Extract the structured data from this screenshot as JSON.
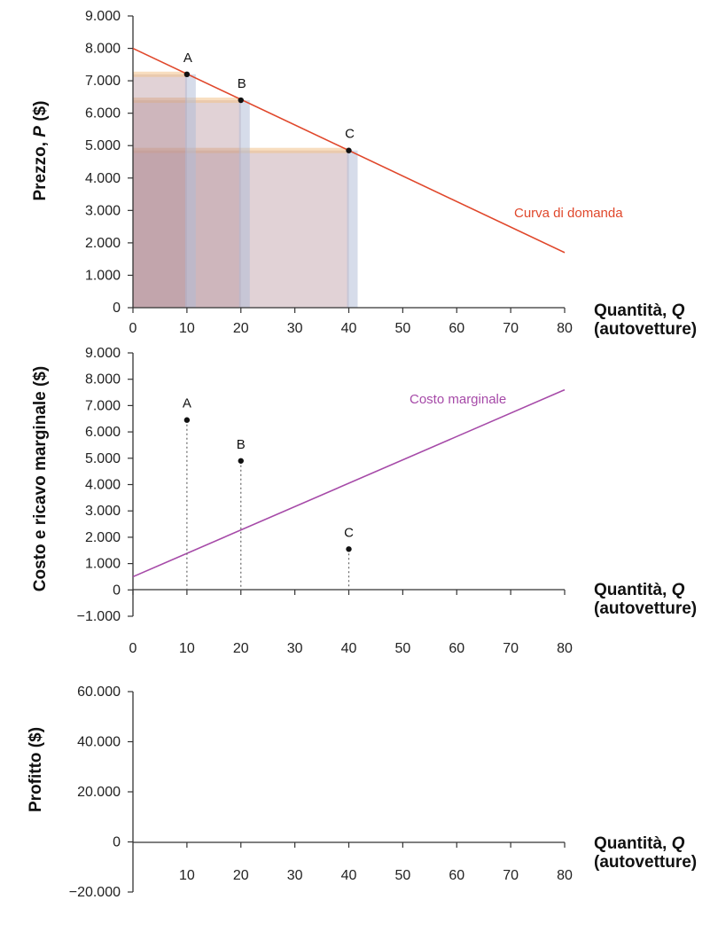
{
  "chart_data": [
    {
      "type": "line",
      "ylabel_main": "Prezzo, ",
      "ylabel_var": "P",
      "ylabel_unit": "  ($)",
      "xlabel_main": "Quantità, ",
      "xlabel_var": "Q",
      "xlabel_unit": "(autovetture)",
      "xlim": [
        0,
        80
      ],
      "ylim": [
        0,
        9000
      ],
      "x_ticks": [
        "0",
        "10",
        "20",
        "30",
        "40",
        "50",
        "60",
        "70",
        "80"
      ],
      "y_ticks": [
        "0",
        "1.000",
        "2.000",
        "3.000",
        "4.000",
        "5.000",
        "6.000",
        "7.000",
        "8.000",
        "9.000"
      ],
      "series": [
        {
          "name": "Curva di domanda",
          "color": "#e0472b",
          "x": [
            0,
            80
          ],
          "y": [
            8000,
            1700
          ]
        }
      ],
      "points": [
        {
          "label": "A",
          "x": 10,
          "y": 7200
        },
        {
          "label": "B",
          "x": 20,
          "y": 6400
        },
        {
          "label": "C",
          "x": 40,
          "y": 4850
        }
      ],
      "revenue_rectangles": [
        {
          "q": 10,
          "p": 7200
        },
        {
          "q": 20,
          "p": 6400
        },
        {
          "q": 40,
          "p": 4850
        }
      ],
      "colors": {
        "rect_fill": "#b08a93",
        "rect_edge": "#f2c38c",
        "rect_side": "#aeb9d6"
      }
    },
    {
      "type": "line",
      "ylabel": "Costo e ricavo marginale ($)",
      "xlabel_main": "Quantità, ",
      "xlabel_var": "Q",
      "xlabel_unit": "(autovetture)",
      "xlim": [
        0,
        80
      ],
      "ylim": [
        -1000,
        9000
      ],
      "x_ticks": [
        "0",
        "10",
        "20",
        "30",
        "40",
        "50",
        "60",
        "70",
        "80"
      ],
      "y_ticks": [
        "−1.000",
        "0",
        "1.000",
        "2.000",
        "3.000",
        "4.000",
        "5.000",
        "6.000",
        "7.000",
        "8.000",
        "9.000"
      ],
      "series": [
        {
          "name": "Costo marginale",
          "color": "#a64aa8",
          "x": [
            0,
            80
          ],
          "y": [
            500,
            7600
          ]
        }
      ],
      "points": [
        {
          "label": "A",
          "x": 10,
          "y": 6450
        },
        {
          "label": "B",
          "x": 20,
          "y": 4900
        },
        {
          "label": "C",
          "x": 40,
          "y": 1550
        }
      ]
    },
    {
      "type": "line",
      "ylabel": "Profitto ($)",
      "xlabel_main": "Quantità, ",
      "xlabel_var": "Q",
      "xlabel_unit": "(autovetture)",
      "xlim": [
        0,
        80
      ],
      "ylim": [
        -20000,
        60000
      ],
      "x_ticks": [
        "10",
        "20",
        "30",
        "40",
        "50",
        "60",
        "70",
        "80"
      ],
      "y_ticks": [
        "−20.000",
        "0",
        "20.000",
        "40.000",
        "60.000"
      ],
      "series": []
    }
  ]
}
